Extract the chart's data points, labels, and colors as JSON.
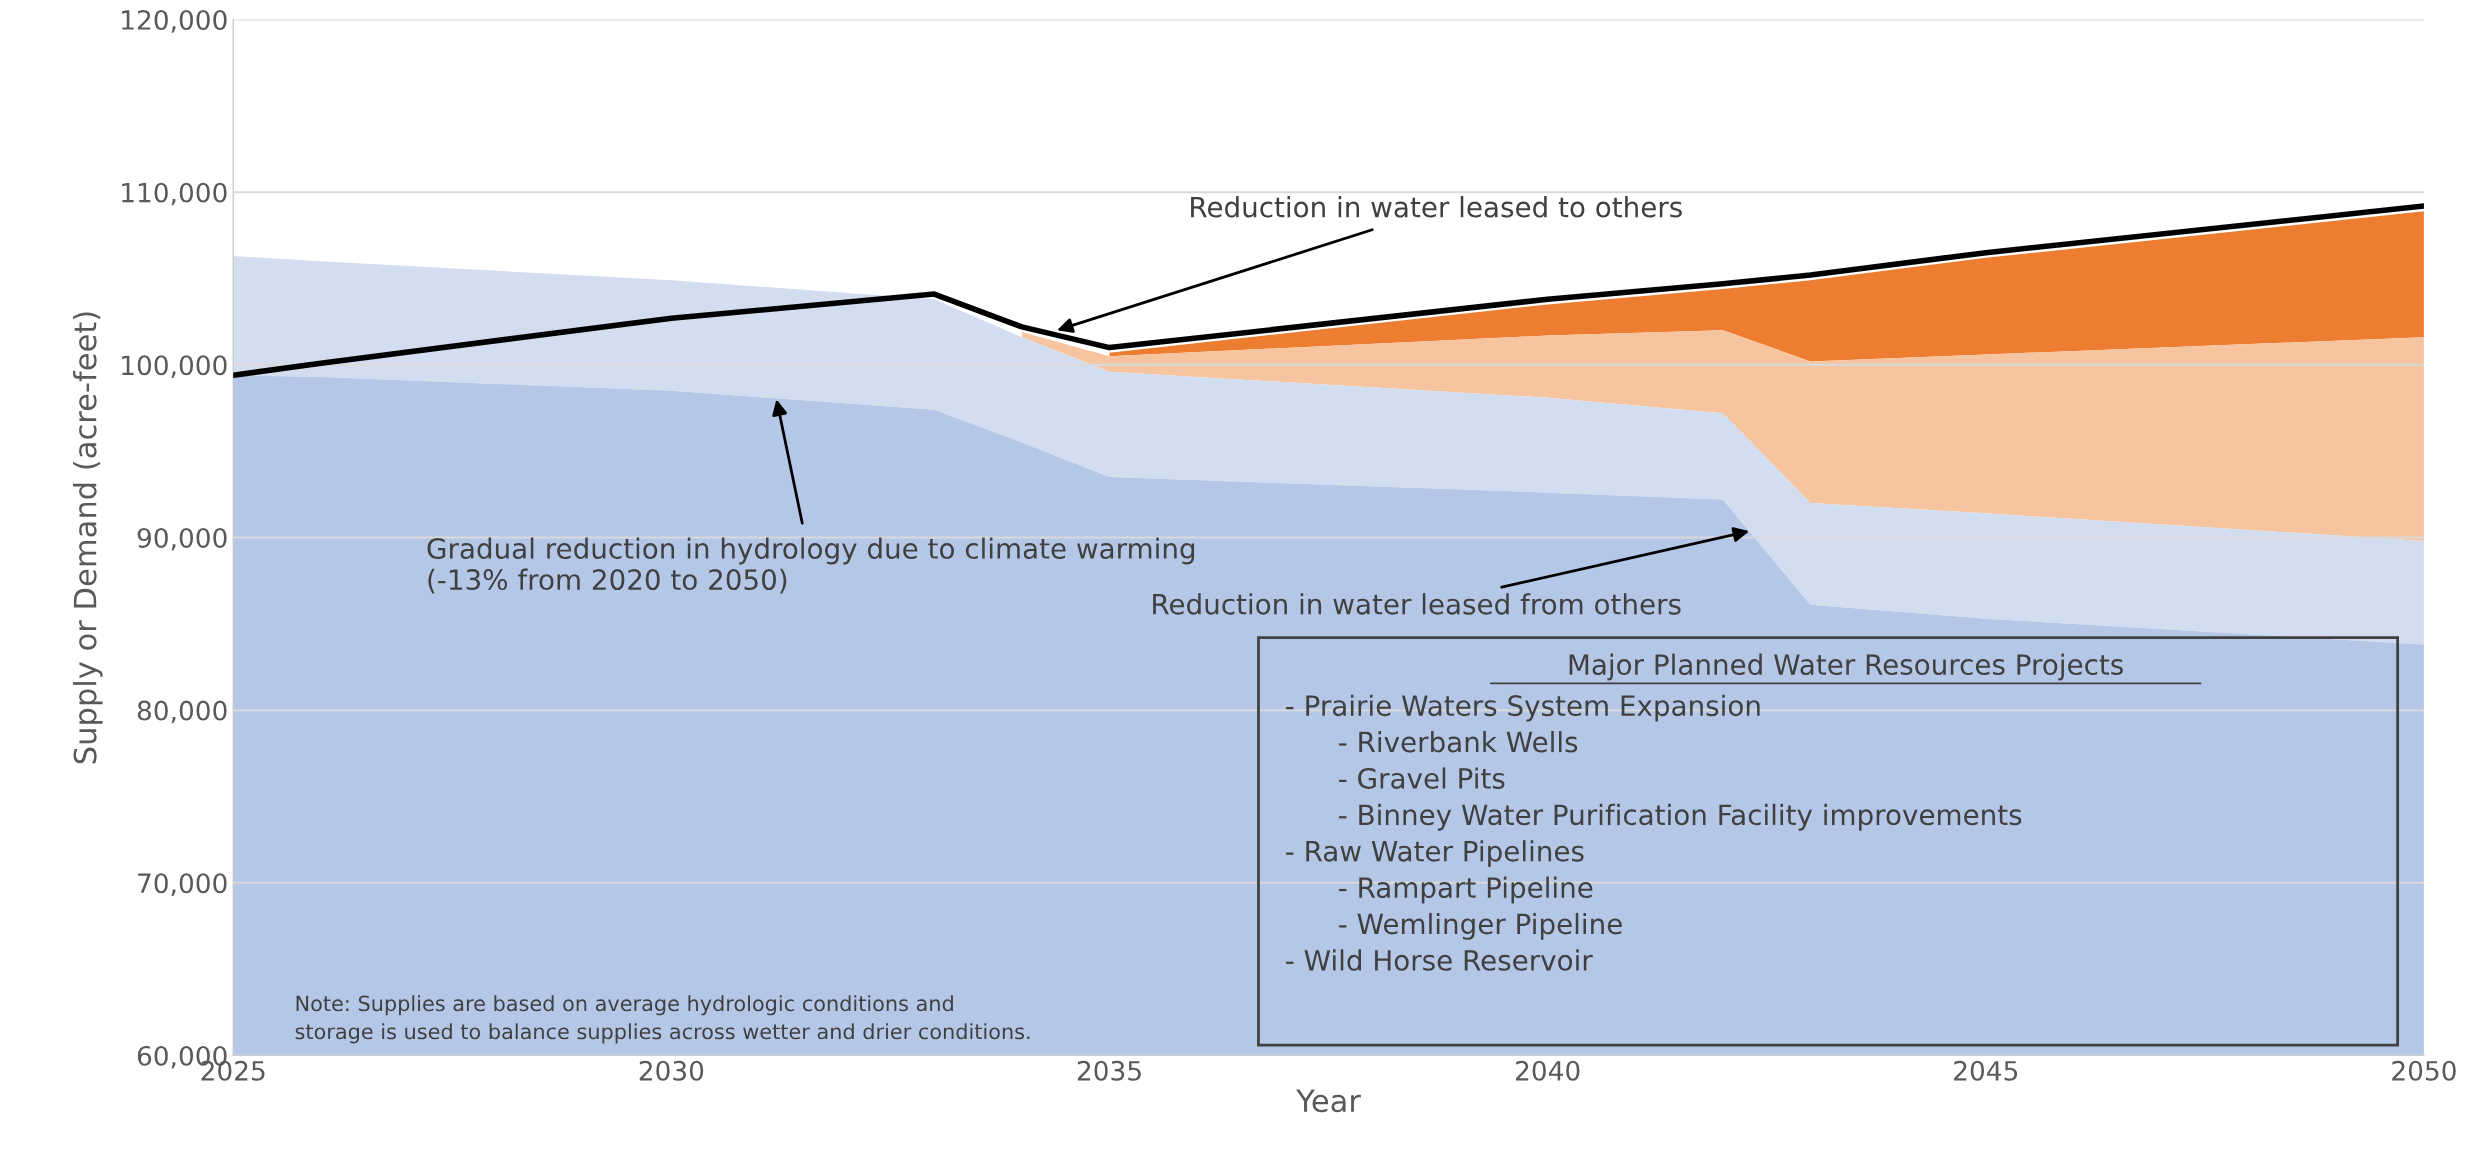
{
  "chart_data": {
    "type": "area",
    "xlabel": "Year",
    "ylabel": "Supply or Demand (acre-feet)",
    "x": [
      2025,
      2026,
      2030,
      2033,
      2034,
      2035,
      2040,
      2042,
      2043,
      2045,
      2050
    ],
    "series": [
      {
        "color": "#ed7d31",
        "values": [
          null,
          null,
          null,
          null,
          null,
          100700,
          103500,
          104400,
          104900,
          106200,
          108900
        ]
      },
      {
        "color": "#f7c4a0",
        "values": [
          null,
          null,
          null,
          null,
          101900,
          100500,
          101700,
          102000,
          100200,
          100600,
          101600
        ]
      },
      {
        "color": "#d3ddf0",
        "values": [
          106300,
          106000,
          104900,
          103800,
          101600,
          99600,
          98100,
          97200,
          92000,
          91400,
          89800
        ]
      },
      {
        "color": "#b4c7e7",
        "values": [
          99400,
          99300,
          98500,
          97400,
          95500,
          93500,
          92600,
          92200,
          86100,
          85300,
          83800
        ]
      },
      {
        "type": "line",
        "color": "#000000",
        "values": [
          99400,
          100100,
          102700,
          104100,
          102200,
          101000,
          103800,
          104700,
          105200,
          106500,
          109200
        ]
      }
    ],
    "xlim": [
      2025,
      2050
    ],
    "xticks": [
      2025,
      2030,
      2035,
      2040,
      2045,
      2050
    ],
    "ylim": [
      60000,
      120000
    ],
    "yticks": [
      {
        "value": 60000,
        "label": "60,000"
      },
      {
        "value": 70000,
        "label": "70,000"
      },
      {
        "value": 80000,
        "label": "80,000"
      },
      {
        "value": 90000,
        "label": "90,000"
      },
      {
        "value": 100000,
        "label": "100,000"
      },
      {
        "value": 110000,
        "label": "110,000"
      },
      {
        "value": 120000,
        "label": "120,000"
      }
    ],
    "grid": "y",
    "legend": false,
    "annotations": [
      {
        "text": "Reduction in water leased to others",
        "x": 2034.4,
        "y": 102000
      },
      {
        "text": "Gradual reduction in hydrology due to climate warming\n(-13% from 2020 to 2050)",
        "x": 2031.2,
        "y": 98000
      },
      {
        "text": "Reduction in water leased from others",
        "x": 2042.3,
        "y": 90370
      },
      "Note: Supplies are based on average hydrologic conditions and\nstorage is used to balance supplies across wetter and drier conditions.",
      "Major Planned Water Resources Projects",
      "- Prairie Waters System Expansion\n      - Riverbank Wells\n      - Gravel Pits\n      - Binney Water Purification Facility improvements\n- Raw Water Pipelines\n      - Rampart Pipeline\n      - Wemlinger Pipeline\n- Wild Horse Reservoir"
    ]
  }
}
